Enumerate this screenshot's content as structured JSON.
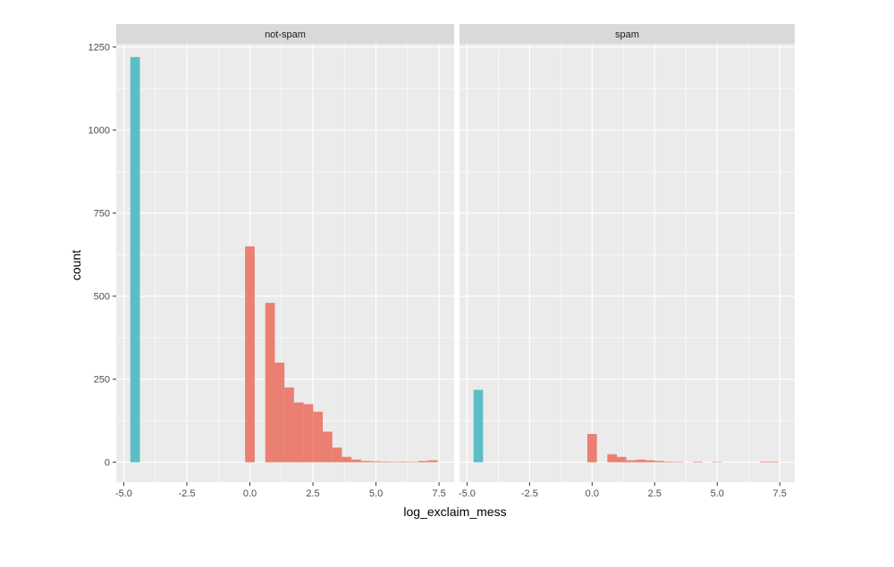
{
  "chart_data": {
    "type": "bar",
    "xlabel": "log_exclaim_mess",
    "ylabel": "count",
    "xlim": [
      -5.3,
      8.1
    ],
    "ylim": [
      -60,
      1260
    ],
    "x_ticks": [
      "-5.0",
      "-2.5",
      "0.0",
      "2.5",
      "5.0",
      "7.5"
    ],
    "x_tick_values": [
      -5,
      -2.5,
      0,
      2.5,
      5,
      7.5
    ],
    "y_ticks": [
      "0",
      "250",
      "500",
      "750",
      "1000",
      "1250"
    ],
    "y_tick_values": [
      0,
      250,
      500,
      750,
      1000,
      1250
    ],
    "grid": true,
    "colors": {
      "no_exclaim": "#5bbdc6",
      "has_exclaim": "#ea7f72",
      "panel": "#ebebeb",
      "strip": "#d9d9d9",
      "grid": "#ffffff"
    },
    "bin_width": 0.38,
    "panels": [
      {
        "strip": "not-spam",
        "bars": [
          {
            "x": -4.55,
            "count": 1220,
            "group": "no_exclaim"
          },
          {
            "x": 0.0,
            "count": 650,
            "group": "has_exclaim"
          },
          {
            "x": 0.8,
            "count": 480,
            "group": "has_exclaim"
          },
          {
            "x": 1.18,
            "count": 300,
            "group": "has_exclaim"
          },
          {
            "x": 1.56,
            "count": 225,
            "group": "has_exclaim"
          },
          {
            "x": 1.94,
            "count": 180,
            "group": "has_exclaim"
          },
          {
            "x": 2.32,
            "count": 175,
            "group": "has_exclaim"
          },
          {
            "x": 2.7,
            "count": 152,
            "group": "has_exclaim"
          },
          {
            "x": 3.08,
            "count": 92,
            "group": "has_exclaim"
          },
          {
            "x": 3.46,
            "count": 44,
            "group": "has_exclaim"
          },
          {
            "x": 3.84,
            "count": 16,
            "group": "has_exclaim"
          },
          {
            "x": 4.22,
            "count": 8,
            "group": "has_exclaim"
          },
          {
            "x": 4.6,
            "count": 4,
            "group": "has_exclaim"
          },
          {
            "x": 4.98,
            "count": 3,
            "group": "has_exclaim"
          },
          {
            "x": 5.36,
            "count": 2,
            "group": "has_exclaim"
          },
          {
            "x": 5.74,
            "count": 1,
            "group": "has_exclaim"
          },
          {
            "x": 6.12,
            "count": 2,
            "group": "has_exclaim"
          },
          {
            "x": 6.5,
            "count": 1,
            "group": "has_exclaim"
          },
          {
            "x": 6.88,
            "count": 4,
            "group": "has_exclaim"
          },
          {
            "x": 7.26,
            "count": 6,
            "group": "has_exclaim"
          }
        ]
      },
      {
        "strip": "spam",
        "bars": [
          {
            "x": -4.55,
            "count": 218,
            "group": "no_exclaim"
          },
          {
            "x": 0.0,
            "count": 85,
            "group": "has_exclaim"
          },
          {
            "x": 0.8,
            "count": 24,
            "group": "has_exclaim"
          },
          {
            "x": 1.18,
            "count": 16,
            "group": "has_exclaim"
          },
          {
            "x": 1.56,
            "count": 6,
            "group": "has_exclaim"
          },
          {
            "x": 1.94,
            "count": 8,
            "group": "has_exclaim"
          },
          {
            "x": 2.32,
            "count": 6,
            "group": "has_exclaim"
          },
          {
            "x": 2.7,
            "count": 4,
            "group": "has_exclaim"
          },
          {
            "x": 3.08,
            "count": 2,
            "group": "has_exclaim"
          },
          {
            "x": 3.46,
            "count": 1,
            "group": "has_exclaim"
          },
          {
            "x": 4.22,
            "count": 2,
            "group": "has_exclaim"
          },
          {
            "x": 4.98,
            "count": 1,
            "group": "has_exclaim"
          },
          {
            "x": 6.88,
            "count": 2,
            "group": "has_exclaim"
          },
          {
            "x": 7.26,
            "count": 2,
            "group": "has_exclaim"
          }
        ]
      }
    ]
  }
}
